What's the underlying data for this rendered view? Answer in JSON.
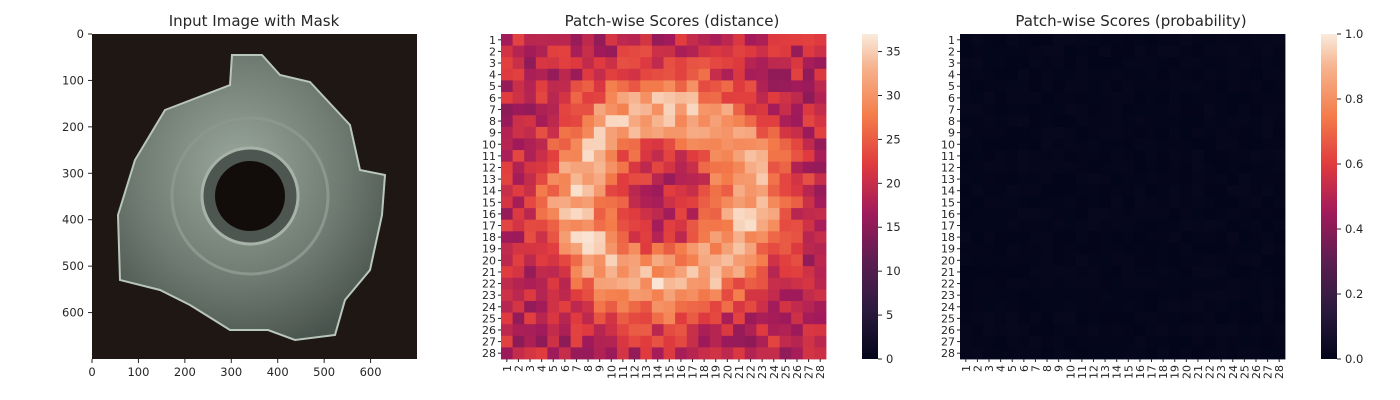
{
  "chart_data": [
    {
      "type": "image",
      "title": "Input Image with Mask",
      "xlabel": "",
      "ylabel": "",
      "xlim": [
        0,
        700
      ],
      "ylim": [
        700,
        0
      ],
      "x_ticks": [
        "0",
        "100",
        "200",
        "300",
        "400",
        "500",
        "600"
      ],
      "y_ticks": [
        "0",
        "100",
        "200",
        "300",
        "400",
        "500",
        "600"
      ],
      "object": "metal-nut-photo"
    },
    {
      "type": "heatmap",
      "title": "Patch-wise Scores (distance)",
      "rows": [
        "1",
        "2",
        "3",
        "4",
        "5",
        "6",
        "7",
        "8",
        "9",
        "10",
        "11",
        "12",
        "13",
        "14",
        "15",
        "16",
        "17",
        "18",
        "19",
        "20",
        "21",
        "22",
        "23",
        "24",
        "25",
        "26",
        "27",
        "28"
      ],
      "cols": [
        "1",
        "2",
        "3",
        "4",
        "5",
        "6",
        "7",
        "8",
        "9",
        "10",
        "11",
        "12",
        "13",
        "14",
        "15",
        "16",
        "17",
        "18",
        "19",
        "20",
        "21",
        "22",
        "23",
        "24",
        "25",
        "26",
        "27",
        "28"
      ],
      "vmin": 0,
      "vmax": 37,
      "colorbar_ticks": [
        "0",
        "5",
        "10",
        "15",
        "20",
        "25",
        "30",
        "35"
      ],
      "colormap": "rocket",
      "approx_pattern": "ring of high distance (28-36) around center, lower values (15-25) at border and center"
    },
    {
      "type": "heatmap",
      "title": "Patch-wise Scores (probability)",
      "rows": [
        "1",
        "2",
        "3",
        "4",
        "5",
        "6",
        "7",
        "8",
        "9",
        "10",
        "11",
        "12",
        "13",
        "14",
        "15",
        "16",
        "17",
        "18",
        "19",
        "20",
        "21",
        "22",
        "23",
        "24",
        "25",
        "26",
        "27",
        "28"
      ],
      "cols": [
        "1",
        "2",
        "3",
        "4",
        "5",
        "6",
        "7",
        "8",
        "9",
        "10",
        "11",
        "12",
        "13",
        "14",
        "15",
        "16",
        "17",
        "18",
        "19",
        "20",
        "21",
        "22",
        "23",
        "24",
        "25",
        "26",
        "27",
        "28"
      ],
      "vmin": 0,
      "vmax": 1,
      "colorbar_ticks": [
        "0.0",
        "0.2",
        "0.4",
        "0.6",
        "0.8",
        "1.0"
      ],
      "colormap": "rocket",
      "approx_pattern": "all values near 0.0-0.05"
    }
  ]
}
